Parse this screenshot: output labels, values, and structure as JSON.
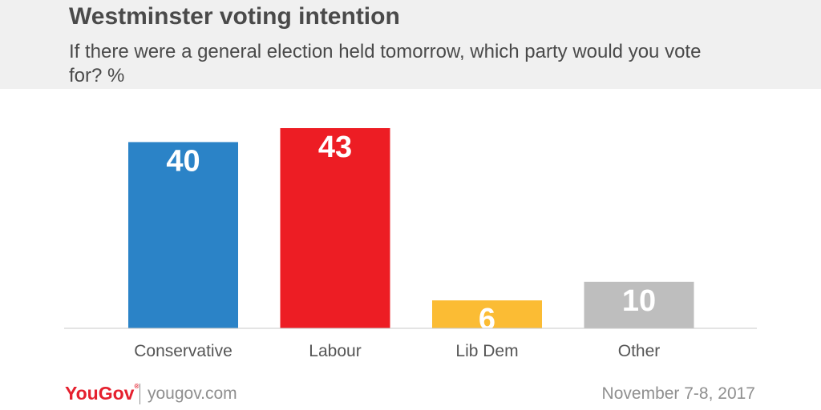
{
  "header": {
    "title": "Westminster voting intention",
    "subtitle": "If there were a general election held tomorrow, which party would you vote for? %"
  },
  "chart_data": {
    "type": "bar",
    "categories": [
      "Conservative",
      "Labour",
      "Lib Dem",
      "Other"
    ],
    "values": [
      40,
      43,
      6,
      10
    ],
    "colors": [
      "#2b83c7",
      "#ed1d24",
      "#fbbc34",
      "#bebebe"
    ],
    "value_label_color": "#ffffff",
    "ylim": [
      0,
      43
    ],
    "grid": false,
    "title": "Westminster voting intention",
    "xlabel": "",
    "ylabel": ""
  },
  "footer": {
    "brand": "YouGov",
    "website": "yougov.com",
    "date": "November 7-8, 2017"
  }
}
